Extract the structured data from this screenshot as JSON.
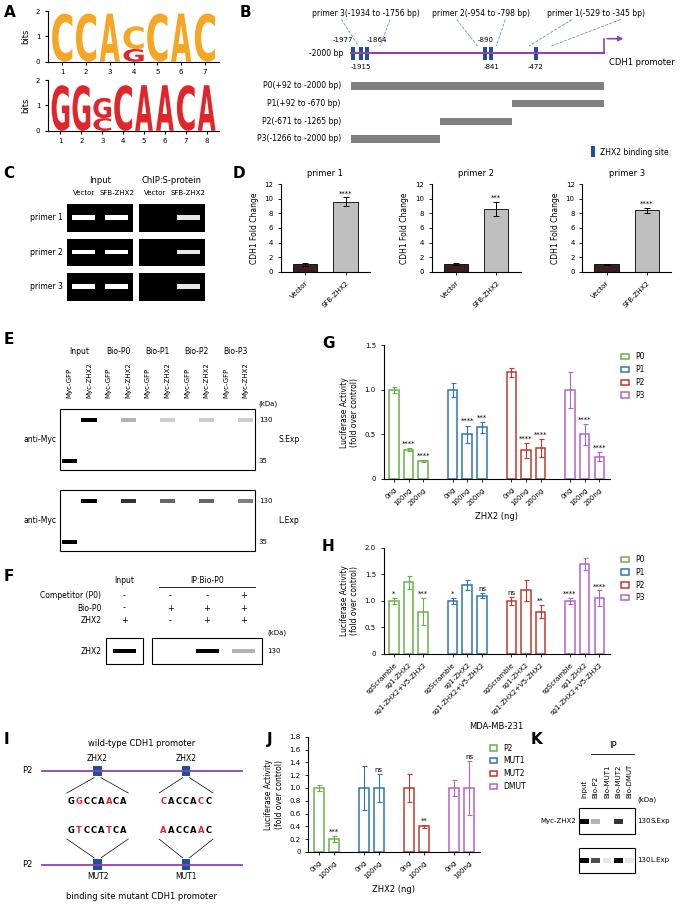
{
  "panels": {
    "A": {
      "panel": "A",
      "logos": [
        {
          "ylabel": "bits",
          "ylim": [
            0,
            2
          ],
          "yticks": [
            0,
            1,
            2
          ],
          "xlim": [
            0.4,
            7.6
          ],
          "positions": [
            1,
            2,
            3,
            4,
            5,
            6,
            7
          ],
          "columns": [
            [
              "C"
            ],
            [
              "C"
            ],
            [
              "A"
            ],
            [
              "C",
              "G"
            ],
            [
              "C"
            ],
            [
              "A"
            ],
            [
              "C"
            ]
          ],
          "heights": [
            [
              1.9
            ],
            [
              1.9
            ],
            [
              1.9
            ],
            [
              0.9,
              0.5
            ],
            [
              1.9
            ],
            [
              1.9
            ],
            [
              1.9
            ]
          ],
          "letter_colors": {
            "A": "#f5a623",
            "C": "#f5a623",
            "G": "#e0262b"
          }
        },
        {
          "ylabel": "bits",
          "ylim": [
            0,
            2
          ],
          "yticks": [
            0,
            1,
            2
          ],
          "xlim": [
            0.4,
            8.6
          ],
          "positions": [
            1,
            2,
            3,
            4,
            5,
            6,
            7,
            8
          ],
          "columns": [
            [
              "G"
            ],
            [
              "G"
            ],
            [
              "G",
              "C"
            ],
            [
              "C"
            ],
            [
              "A"
            ],
            [
              "A"
            ],
            [
              "C"
            ],
            [
              "A"
            ]
          ],
          "heights": [
            [
              1.8
            ],
            [
              1.8
            ],
            [
              0.8,
              0.5
            ],
            [
              1.8
            ],
            [
              1.8
            ],
            [
              1.8
            ],
            [
              1.8
            ],
            [
              1.8
            ]
          ],
          "letter_colors": {
            "A": "#e0262b",
            "C": "#e0262b",
            "G": "#e0262b"
          }
        }
      ]
    },
    "B": {
      "panel": "B",
      "range_start_label": "-2000 bp",
      "promoter_label": "CDH1 promoter",
      "start": -2000,
      "end": 92,
      "primers": [
        {
          "label": "primer 3(-1934 to -1756 bp)",
          "start": -1934,
          "end": -1756
        },
        {
          "label": "primer 2(-954 to -798 bp)",
          "start": -954,
          "end": -798
        },
        {
          "label": "primer 1(-529 to -345 bp)",
          "start": -529,
          "end": -345
        }
      ],
      "sites_above": [
        -1977,
        -1864,
        -890
      ],
      "sites_below": [
        -1915,
        -841,
        -472
      ],
      "fragments": [
        {
          "label": "P0(+92 to -2000 bp)",
          "start": -2000,
          "end": 92
        },
        {
          "label": "P1(+92 to -670 bp)",
          "start": -670,
          "end": 92
        },
        {
          "label": "P2(-671 to -1265 bp)",
          "start": -1265,
          "end": -671
        },
        {
          "label": "P3(-1266 to -2000 bp)",
          "start": -2000,
          "end": -1266
        }
      ],
      "site_legend": "ZHX2 binding site",
      "site_color": "#1f4e9c",
      "line_color": "#8e44ad",
      "fragment_color": "#808080"
    },
    "C": {
      "panel": "C",
      "groups": [
        "Input",
        "ChIP:S-protein"
      ],
      "lanes": [
        "Vector",
        "SFB-ZHX2",
        "Vector",
        "SFB-ZHX2"
      ],
      "rows": [
        "primer 1",
        "primer 2",
        "primer 3"
      ],
      "bands": [
        [
          1,
          1,
          0,
          0.9
        ],
        [
          1,
          1,
          0,
          0.9
        ],
        [
          1,
          1,
          0,
          0.9
        ]
      ]
    },
    "E": {
      "panel": "E",
      "groups": [
        "Input",
        "Bio-P0",
        "Bio-P1",
        "Bio-P2",
        "Bio-P3"
      ],
      "lanes": [
        "Myc-GFP",
        "Myc-ZHX2"
      ],
      "antibody": "anti-Myc",
      "unit": "(kDa)",
      "markers": [
        130,
        35
      ],
      "blots": [
        {
          "exposure": "S.Exp",
          "bands_130": [
            0,
            1,
            0,
            0.3,
            0,
            0.2,
            0,
            0.2,
            0,
            0.2
          ],
          "bands_35": [
            1,
            0,
            0,
            0,
            0,
            0,
            0,
            0,
            0,
            0
          ]
        },
        {
          "exposure": "L.Exp",
          "bands_130": [
            0,
            1,
            0,
            0.8,
            0,
            0.6,
            0,
            0.6,
            0,
            0.5
          ],
          "bands_35": [
            1,
            0,
            0,
            0,
            0,
            0,
            0,
            0,
            0,
            0
          ]
        }
      ]
    },
    "F": {
      "panel": "F",
      "groups": [
        "Input",
        "IP:Bio-P0"
      ],
      "rows": [
        {
          "label": "Competitor (P0)",
          "signs": [
            "-",
            "-",
            "-",
            "+"
          ]
        },
        {
          "label": "Bio-P0",
          "signs": [
            "-",
            "+",
            "+",
            "+"
          ]
        },
        {
          "label": "ZHX2",
          "signs": [
            "+",
            "-",
            "+",
            "+"
          ]
        }
      ],
      "blot_label": "ZHX2",
      "unit": "(kDa)",
      "markers": [
        130
      ],
      "bands": [
        1,
        0,
        1,
        0.3
      ]
    },
    "I": {
      "panel": "I",
      "wild_title": "wild-type CDH1 promoter",
      "mutant_title": "binding site mutant CDH1 promoter",
      "fragment": "P2",
      "factor": "ZHX2",
      "sites": [
        {
          "wild": "GGCCAACA",
          "mutant": "GTCCATCA",
          "mutant_name": "MUT2"
        },
        {
          "wild": "CACCACC",
          "mutant": "AACCAAC",
          "mutant_name": "MUT1"
        }
      ],
      "site_color": "#1f4e9c",
      "mutation_color": "#e0262b"
    },
    "K": {
      "panel": "K",
      "header": "IP",
      "lanes": [
        "Input",
        "Bio-P2",
        "Bio-MUT1",
        "Bio-MUT2",
        "Bio-DMUT"
      ],
      "blot_label": "Myc-ZHX2",
      "unit": "(kDa)",
      "markers": [
        130
      ],
      "blots": [
        {
          "exposure": "S.Exp",
          "bands": [
            1,
            0.3,
            0,
            0.8,
            0
          ]
        },
        {
          "exposure": "L.Exp",
          "bands": [
            1,
            0.7,
            0.1,
            1,
            0.1
          ]
        }
      ]
    }
  },
  "chart_data": [
    {
      "type": "bar",
      "panel": "D",
      "title": "primer 1",
      "ylabel": "CDH1 Fold Change",
      "categories": [
        "Vector",
        "SFB-ZHX2"
      ],
      "values": [
        1.0,
        9.6
      ],
      "errors": [
        0.2,
        0.6
      ],
      "significance": [
        null,
        "****"
      ],
      "colors": [
        "#3b1e1e",
        "#bfbfbf"
      ],
      "ylim": [
        0,
        12
      ],
      "yticks": [
        0,
        2,
        4,
        6,
        8,
        10,
        12
      ]
    },
    {
      "type": "bar",
      "title": "primer 2",
      "ylabel": "CDH1 Fold Change",
      "categories": [
        "Vector",
        "SFB-ZHX2"
      ],
      "values": [
        1.0,
        8.6
      ],
      "errors": [
        0.15,
        1.0
      ],
      "significance": [
        null,
        "***"
      ],
      "colors": [
        "#3b1e1e",
        "#bfbfbf"
      ],
      "ylim": [
        0,
        12
      ],
      "yticks": [
        0,
        2,
        4,
        6,
        8,
        10,
        12
      ]
    },
    {
      "type": "bar",
      "title": "primer 3",
      "ylabel": "CDH1 Fold Change",
      "categories": [
        "Vector",
        "SFB-ZHX2"
      ],
      "values": [
        1.0,
        8.4
      ],
      "errors": [
        0.1,
        0.4
      ],
      "significance": [
        null,
        "****"
      ],
      "colors": [
        "#3b1e1e",
        "#bfbfbf"
      ],
      "ylim": [
        0,
        12
      ],
      "yticks": [
        0,
        2,
        4,
        6,
        8,
        10,
        12
      ]
    },
    {
      "type": "bar",
      "panel": "G",
      "ylabel": "Luciferase Activity\n(fold over control)",
      "xlabel": "ZHX2 (ng)",
      "ylim": [
        0,
        1.5
      ],
      "yticks": [
        0,
        0.5,
        1.0,
        1.5
      ],
      "legend": "right",
      "series": [
        {
          "name": "P0",
          "color": "#6ab04c",
          "categories": [
            "0ng",
            "100ng",
            "200ng"
          ],
          "values": [
            1.0,
            0.33,
            0.2
          ],
          "errors": [
            0.03,
            0.02,
            0.01
          ],
          "significance": [
            null,
            "****",
            "****"
          ]
        },
        {
          "name": "P1",
          "color": "#2f75b5",
          "categories": [
            "0ng",
            "100ng",
            "200ng"
          ],
          "values": [
            1.0,
            0.5,
            0.58
          ],
          "errors": [
            0.08,
            0.1,
            0.06
          ],
          "significance": [
            null,
            "****",
            "***"
          ]
        },
        {
          "name": "P2",
          "color": "#c0392b",
          "categories": [
            "0ng",
            "100ng",
            "200ng"
          ],
          "values": [
            1.2,
            0.32,
            0.35
          ],
          "errors": [
            0.05,
            0.08,
            0.1
          ],
          "significance": [
            null,
            "****",
            "****"
          ]
        },
        {
          "name": "P3",
          "color": "#b163c9",
          "categories": [
            "0ng",
            "100ng",
            "200ng"
          ],
          "values": [
            1.0,
            0.5,
            0.25
          ],
          "errors": [
            0.2,
            0.12,
            0.05
          ],
          "significance": [
            null,
            "****",
            "****"
          ]
        }
      ]
    },
    {
      "type": "bar",
      "panel": "H",
      "ylabel": "Luciferase Activity\n(fold over control)",
      "xlabel": "MDA-MB-231",
      "ylim": [
        0,
        2.0
      ],
      "yticks": [
        0,
        0.5,
        1.0,
        1.5,
        2.0
      ],
      "legend": "right",
      "series": [
        {
          "name": "P0",
          "color": "#6ab04c",
          "categories": [
            "sgScramble",
            "sg1-ZHX2",
            "sg1-ZHX2+V5-ZHX2"
          ],
          "values": [
            1.0,
            1.35,
            0.8
          ],
          "errors": [
            0.05,
            0.12,
            0.25
          ],
          "significance": [
            "*",
            null,
            "***"
          ]
        },
        {
          "name": "P1",
          "color": "#2f75b5",
          "categories": [
            "sgScramble",
            "sg1-ZHX2",
            "sg1-ZHX2+V5-ZHX2"
          ],
          "values": [
            1.0,
            1.3,
            1.1
          ],
          "errors": [
            0.05,
            0.1,
            0.05
          ],
          "significance": [
            "*",
            null,
            "ns"
          ]
        },
        {
          "name": "P2",
          "color": "#c0392b",
          "categories": [
            "sgScramble",
            "sg1-ZHX2",
            "sg1-ZHX2+V5-ZHX2"
          ],
          "values": [
            1.0,
            1.2,
            0.8
          ],
          "errors": [
            0.08,
            0.2,
            0.12
          ],
          "significance": [
            "ns",
            null,
            "**"
          ]
        },
        {
          "name": "P3",
          "color": "#b163c9",
          "categories": [
            "sgScramble",
            "sg1-ZHX2",
            "sg1-ZHX2+V5-ZHX2"
          ],
          "values": [
            1.0,
            1.7,
            1.05
          ],
          "errors": [
            0.05,
            0.12,
            0.15
          ],
          "significance": [
            "****",
            null,
            "****"
          ]
        }
      ]
    },
    {
      "type": "bar",
      "panel": "J",
      "ylabel": "Luciferase Activity\n(fold over control)",
      "xlabel": "ZHX2 (ng)",
      "ylim": [
        0,
        1.8
      ],
      "yticks": [
        0,
        0.2,
        0.4,
        0.6,
        0.8,
        1.0,
        1.2,
        1.4,
        1.6,
        1.8
      ],
      "legend": "right",
      "series": [
        {
          "name": "P2",
          "color": "#6ab04c",
          "categories": [
            "0ng",
            "100ng"
          ],
          "values": [
            1.0,
            0.2
          ],
          "errors": [
            0.05,
            0.05
          ],
          "significance": [
            null,
            "***"
          ]
        },
        {
          "name": "MUT1",
          "color": "#2f75b5",
          "categories": [
            "0ng",
            "100ng"
          ],
          "values": [
            1.0,
            1.0
          ],
          "errors": [
            0.35,
            0.22
          ],
          "significance": [
            null,
            "ns"
          ]
        },
        {
          "name": "MUT2",
          "color": "#c0392b",
          "categories": [
            "0ng",
            "100ng"
          ],
          "values": [
            1.0,
            0.4
          ],
          "errors": [
            0.22,
            0.02
          ],
          "significance": [
            null,
            "**"
          ]
        },
        {
          "name": "DMUT",
          "color": "#b163c9",
          "categories": [
            "0ng",
            "100ng"
          ],
          "values": [
            1.0,
            1.0
          ],
          "errors": [
            0.12,
            0.42
          ],
          "significance": [
            null,
            "ns"
          ]
        }
      ]
    }
  ]
}
